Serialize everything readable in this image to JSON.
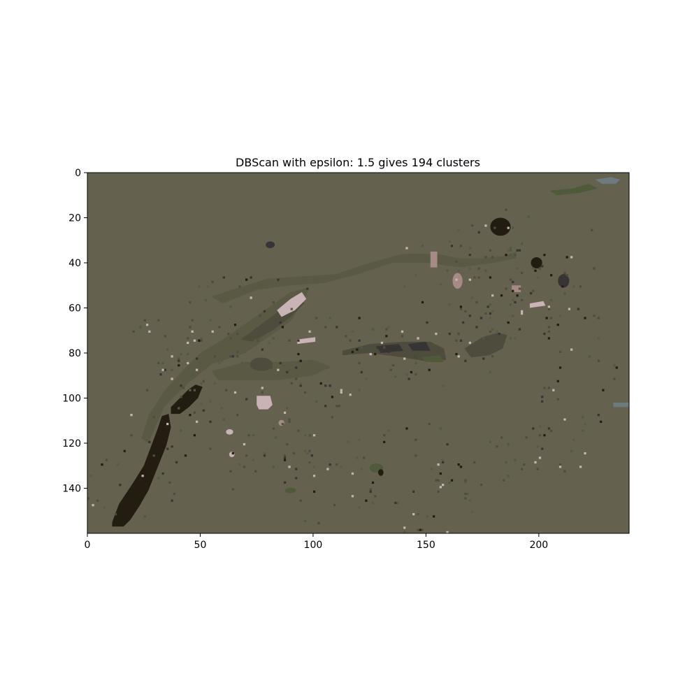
{
  "chart_data": {
    "type": "heatmap",
    "title": "DBScan with epsilon: 1.5 gives 194 clusters",
    "xlabel": "",
    "ylabel": "",
    "xlim": [
      0,
      240
    ],
    "ylim": [
      160,
      0
    ],
    "xticks": [
      0,
      50,
      100,
      150,
      200
    ],
    "yticks": [
      0,
      20,
      40,
      60,
      80,
      100,
      120,
      140
    ],
    "grid": false,
    "background_color": "#65614f",
    "colors": {
      "dark": "#231c10",
      "olive_dark": "#4e4c3c",
      "olive_mid": "#5a5a44",
      "greenish": "#4f5a3a",
      "light_pink": "#c9b3b6",
      "mauve": "#a58a86",
      "gray_blue": "#6d7a7e",
      "dark_gray": "#363434"
    },
    "regions": [
      {
        "shape": "polygon",
        "color": "dark",
        "points": [
          [
            11,
            155
          ],
          [
            14,
            147
          ],
          [
            20,
            138
          ],
          [
            25,
            130
          ],
          [
            28,
            122
          ],
          [
            31,
            114
          ],
          [
            33,
            108
          ],
          [
            36,
            107
          ],
          [
            37,
            113
          ],
          [
            35,
            121
          ],
          [
            31,
            131
          ],
          [
            27,
            141
          ],
          [
            23,
            148
          ],
          [
            19,
            154
          ],
          [
            16,
            157
          ],
          [
            11,
            157
          ]
        ]
      },
      {
        "shape": "polygon",
        "color": "dark",
        "points": [
          [
            37,
            104
          ],
          [
            41,
            100
          ],
          [
            45,
            96
          ],
          [
            48,
            94
          ],
          [
            51,
            95
          ],
          [
            49,
            100
          ],
          [
            45,
            104
          ],
          [
            41,
            107
          ],
          [
            37,
            107
          ]
        ]
      },
      {
        "shape": "polygon",
        "color": "olive_mid",
        "points": [
          [
            27,
            120
          ],
          [
            34,
            104
          ],
          [
            44,
            94
          ],
          [
            55,
            85
          ],
          [
            70,
            80
          ],
          [
            90,
            66
          ],
          [
            97,
            55
          ],
          [
            98,
            51
          ],
          [
            90,
            53
          ],
          [
            80,
            60
          ],
          [
            70,
            67
          ],
          [
            60,
            74
          ],
          [
            50,
            80
          ],
          [
            42,
            88
          ],
          [
            34,
            97
          ],
          [
            27,
            108
          ],
          [
            24,
            118
          ]
        ]
      },
      {
        "shape": "polygon",
        "color": "olive_dark",
        "points": [
          [
            68,
            74
          ],
          [
            76,
            68
          ],
          [
            84,
            62
          ],
          [
            90,
            57
          ],
          [
            95,
            54
          ],
          [
            96,
            58
          ],
          [
            90,
            64
          ],
          [
            82,
            70
          ],
          [
            73,
            75
          ]
        ]
      },
      {
        "shape": "polygon",
        "color": "olive_mid",
        "points": [
          [
            55,
            88
          ],
          [
            70,
            84
          ],
          [
            85,
            84
          ],
          [
            100,
            83
          ],
          [
            108,
            86
          ],
          [
            100,
            90
          ],
          [
            85,
            92
          ],
          [
            70,
            92
          ],
          [
            58,
            92
          ]
        ]
      },
      {
        "shape": "ellipse",
        "color": "olive_dark",
        "cx": 77,
        "cy": 85,
        "rx": 5,
        "ry": 3
      },
      {
        "shape": "polygon",
        "color": "olive_dark",
        "points": [
          [
            113,
            79
          ],
          [
            125,
            76
          ],
          [
            140,
            75
          ],
          [
            152,
            75
          ],
          [
            158,
            78
          ],
          [
            159,
            83
          ],
          [
            152,
            84
          ],
          [
            140,
            82
          ],
          [
            125,
            80
          ],
          [
            113,
            81
          ]
        ]
      },
      {
        "shape": "polygon",
        "color": "dark_gray",
        "points": [
          [
            128,
            77
          ],
          [
            138,
            76
          ],
          [
            140,
            79
          ],
          [
            130,
            80
          ]
        ]
      },
      {
        "shape": "polygon",
        "color": "dark_gray",
        "points": [
          [
            142,
            76
          ],
          [
            150,
            75
          ],
          [
            152,
            79
          ],
          [
            144,
            79
          ]
        ]
      },
      {
        "shape": "polygon",
        "color": "greenish",
        "points": [
          [
            148,
            82
          ],
          [
            156,
            81
          ],
          [
            158,
            84
          ],
          [
            150,
            84
          ]
        ]
      },
      {
        "shape": "polygon",
        "color": "olive_dark",
        "points": [
          [
            167,
            78
          ],
          [
            175,
            73
          ],
          [
            182,
            71
          ],
          [
            186,
            72
          ],
          [
            184,
            78
          ],
          [
            178,
            81
          ],
          [
            170,
            82
          ]
        ]
      },
      {
        "shape": "polygon",
        "color": "olive_mid",
        "points": [
          [
            55,
            55
          ],
          [
            70,
            50
          ],
          [
            80,
            47
          ],
          [
            95,
            46
          ],
          [
            110,
            45
          ],
          [
            125,
            40
          ],
          [
            140,
            36
          ],
          [
            155,
            36
          ],
          [
            165,
            38
          ],
          [
            175,
            38
          ],
          [
            185,
            37
          ],
          [
            190,
            35
          ],
          [
            190,
            38
          ],
          [
            180,
            40
          ],
          [
            165,
            42
          ],
          [
            150,
            40
          ],
          [
            135,
            40
          ],
          [
            120,
            45
          ],
          [
            105,
            49
          ],
          [
            90,
            50
          ],
          [
            75,
            52
          ],
          [
            60,
            58
          ]
        ]
      },
      {
        "shape": "ellipse",
        "color": "dark",
        "cx": 183,
        "cy": 24,
        "rx": 4.5,
        "ry": 4
      },
      {
        "shape": "ellipse",
        "color": "dark",
        "cx": 199,
        "cy": 40,
        "rx": 2.5,
        "ry": 2.5
      },
      {
        "shape": "ellipse",
        "color": "dark_gray",
        "cx": 211,
        "cy": 48,
        "rx": 2.5,
        "ry": 3
      },
      {
        "shape": "ellipse",
        "color": "dark_gray",
        "cx": 81,
        "cy": 32,
        "rx": 2,
        "ry": 1.5
      },
      {
        "shape": "ellipse",
        "color": "mauve",
        "cx": 164,
        "cy": 48,
        "rx": 2.2,
        "ry": 3.5
      },
      {
        "shape": "polygon",
        "color": "light_pink",
        "points": [
          [
            75,
            99
          ],
          [
            81,
            99
          ],
          [
            82,
            103
          ],
          [
            80,
            105
          ],
          [
            76,
            105
          ],
          [
            75,
            103
          ]
        ]
      },
      {
        "shape": "polygon",
        "color": "light_pink",
        "points": [
          [
            93,
            74
          ],
          [
            101,
            73
          ],
          [
            101,
            75
          ],
          [
            93,
            76
          ]
        ]
      },
      {
        "shape": "polygon",
        "color": "light_pink",
        "points": [
          [
            196,
            58
          ],
          [
            202,
            57
          ],
          [
            203,
            59
          ],
          [
            196,
            60
          ]
        ]
      },
      {
        "shape": "polygon",
        "color": "light_pink",
        "points": [
          [
            84,
            61
          ],
          [
            90,
            56
          ],
          [
            95,
            53
          ],
          [
            97,
            56
          ],
          [
            92,
            61
          ],
          [
            86,
            64
          ]
        ]
      },
      {
        "shape": "polygon",
        "color": "mauve",
        "points": [
          [
            188,
            50
          ],
          [
            192,
            50
          ],
          [
            192,
            53
          ],
          [
            188,
            53
          ]
        ]
      },
      {
        "shape": "polygon",
        "color": "greenish",
        "points": [
          [
            205,
            8
          ],
          [
            215,
            7
          ],
          [
            222,
            5
          ],
          [
            226,
            7
          ],
          [
            218,
            9
          ],
          [
            208,
            10
          ]
        ]
      },
      {
        "shape": "polygon",
        "color": "gray_blue",
        "points": [
          [
            225,
            3
          ],
          [
            232,
            2
          ],
          [
            236,
            3
          ],
          [
            234,
            5
          ],
          [
            228,
            5
          ]
        ]
      },
      {
        "shape": "polygon",
        "color": "gray_blue",
        "points": [
          [
            233,
            102
          ],
          [
            240,
            102
          ],
          [
            240,
            104
          ],
          [
            233,
            104
          ]
        ]
      },
      {
        "shape": "polygon",
        "color": "mauve",
        "points": [
          [
            152,
            35
          ],
          [
            155,
            35
          ],
          [
            155,
            42
          ],
          [
            152,
            42
          ]
        ]
      },
      {
        "shape": "ellipse",
        "color": "light_pink",
        "cx": 63,
        "cy": 115,
        "rx": 1.6,
        "ry": 1.2
      },
      {
        "shape": "ellipse",
        "color": "light_pink",
        "cx": 64,
        "cy": 125,
        "rx": 1.2,
        "ry": 1.2
      },
      {
        "shape": "ellipse",
        "color": "mauve",
        "cx": 86,
        "cy": 111,
        "rx": 1.3,
        "ry": 1.3
      },
      {
        "shape": "ellipse",
        "color": "greenish",
        "cx": 90,
        "cy": 141,
        "rx": 2.5,
        "ry": 1.2
      },
      {
        "shape": "ellipse",
        "color": "greenish",
        "cx": 128,
        "cy": 131,
        "rx": 3,
        "ry": 2
      },
      {
        "shape": "ellipse",
        "color": "dark",
        "cx": 130,
        "cy": 133,
        "rx": 1.2,
        "ry": 1.5
      }
    ]
  }
}
